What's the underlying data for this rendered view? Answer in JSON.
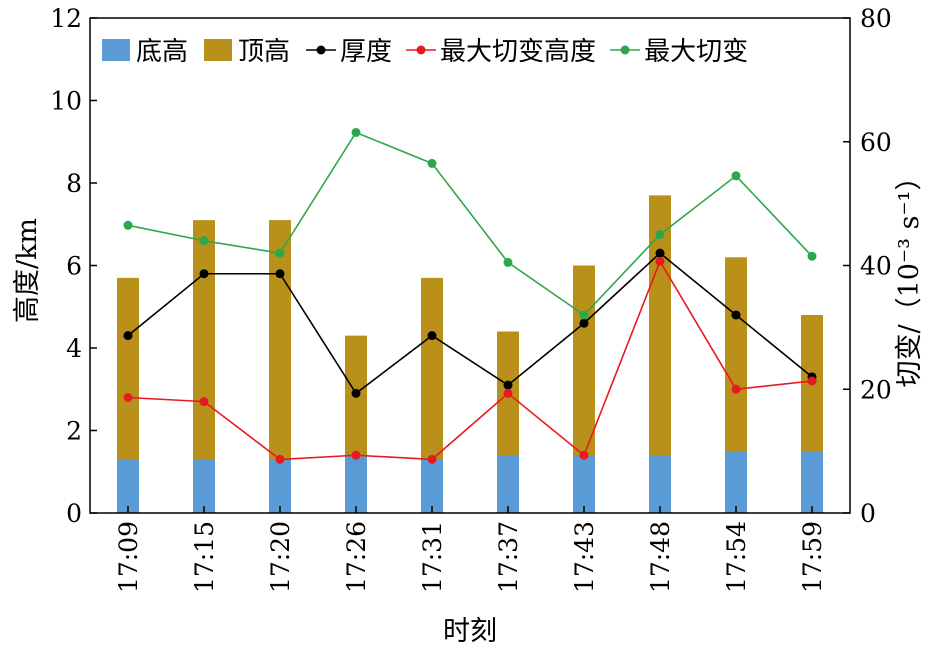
{
  "chart_data": {
    "type": "bar",
    "categories": [
      "17:09",
      "17:15",
      "17:20",
      "17:26",
      "17:31",
      "17:37",
      "17:43",
      "17:48",
      "17:54",
      "17:59"
    ],
    "xlabel": "时刻",
    "ylabel": "高度/km",
    "y2label": "切变/（10⁻³ s⁻¹）",
    "ylim": [
      0,
      12
    ],
    "y2lim": [
      0,
      80
    ],
    "yticks": [
      "0",
      "2",
      "4",
      "6",
      "8",
      "10",
      "12"
    ],
    "y2ticks": [
      "0",
      "20",
      "40",
      "60",
      "80"
    ],
    "bar_series": [
      {
        "name": "底高",
        "color": "#5b9bd5",
        "values": [
          1.3,
          1.3,
          1.3,
          1.4,
          1.3,
          1.4,
          1.4,
          1.4,
          1.5,
          1.5
        ]
      },
      {
        "name": "顶高",
        "color": "#b8901a",
        "values": [
          5.7,
          7.1,
          7.1,
          4.3,
          5.7,
          4.4,
          6.0,
          7.7,
          6.2,
          4.8
        ]
      }
    ],
    "line_series": [
      {
        "name": "厚度",
        "color": "#000000",
        "axis": "left",
        "values": [
          4.3,
          5.8,
          5.8,
          2.9,
          4.3,
          3.1,
          4.6,
          6.3,
          4.8,
          3.3
        ]
      },
      {
        "name": "最大切变高度",
        "color": "#e8191f",
        "axis": "left",
        "values": [
          2.8,
          2.7,
          1.3,
          1.4,
          1.3,
          2.9,
          1.4,
          6.1,
          3.0,
          3.2
        ]
      },
      {
        "name": "最大切变",
        "color": "#2ca84a",
        "axis": "right",
        "values": [
          46.5,
          44.0,
          42.0,
          61.5,
          56.5,
          40.5,
          32.0,
          45.0,
          54.5,
          41.5
        ]
      }
    ],
    "legend_position": "top",
    "grid": false
  }
}
